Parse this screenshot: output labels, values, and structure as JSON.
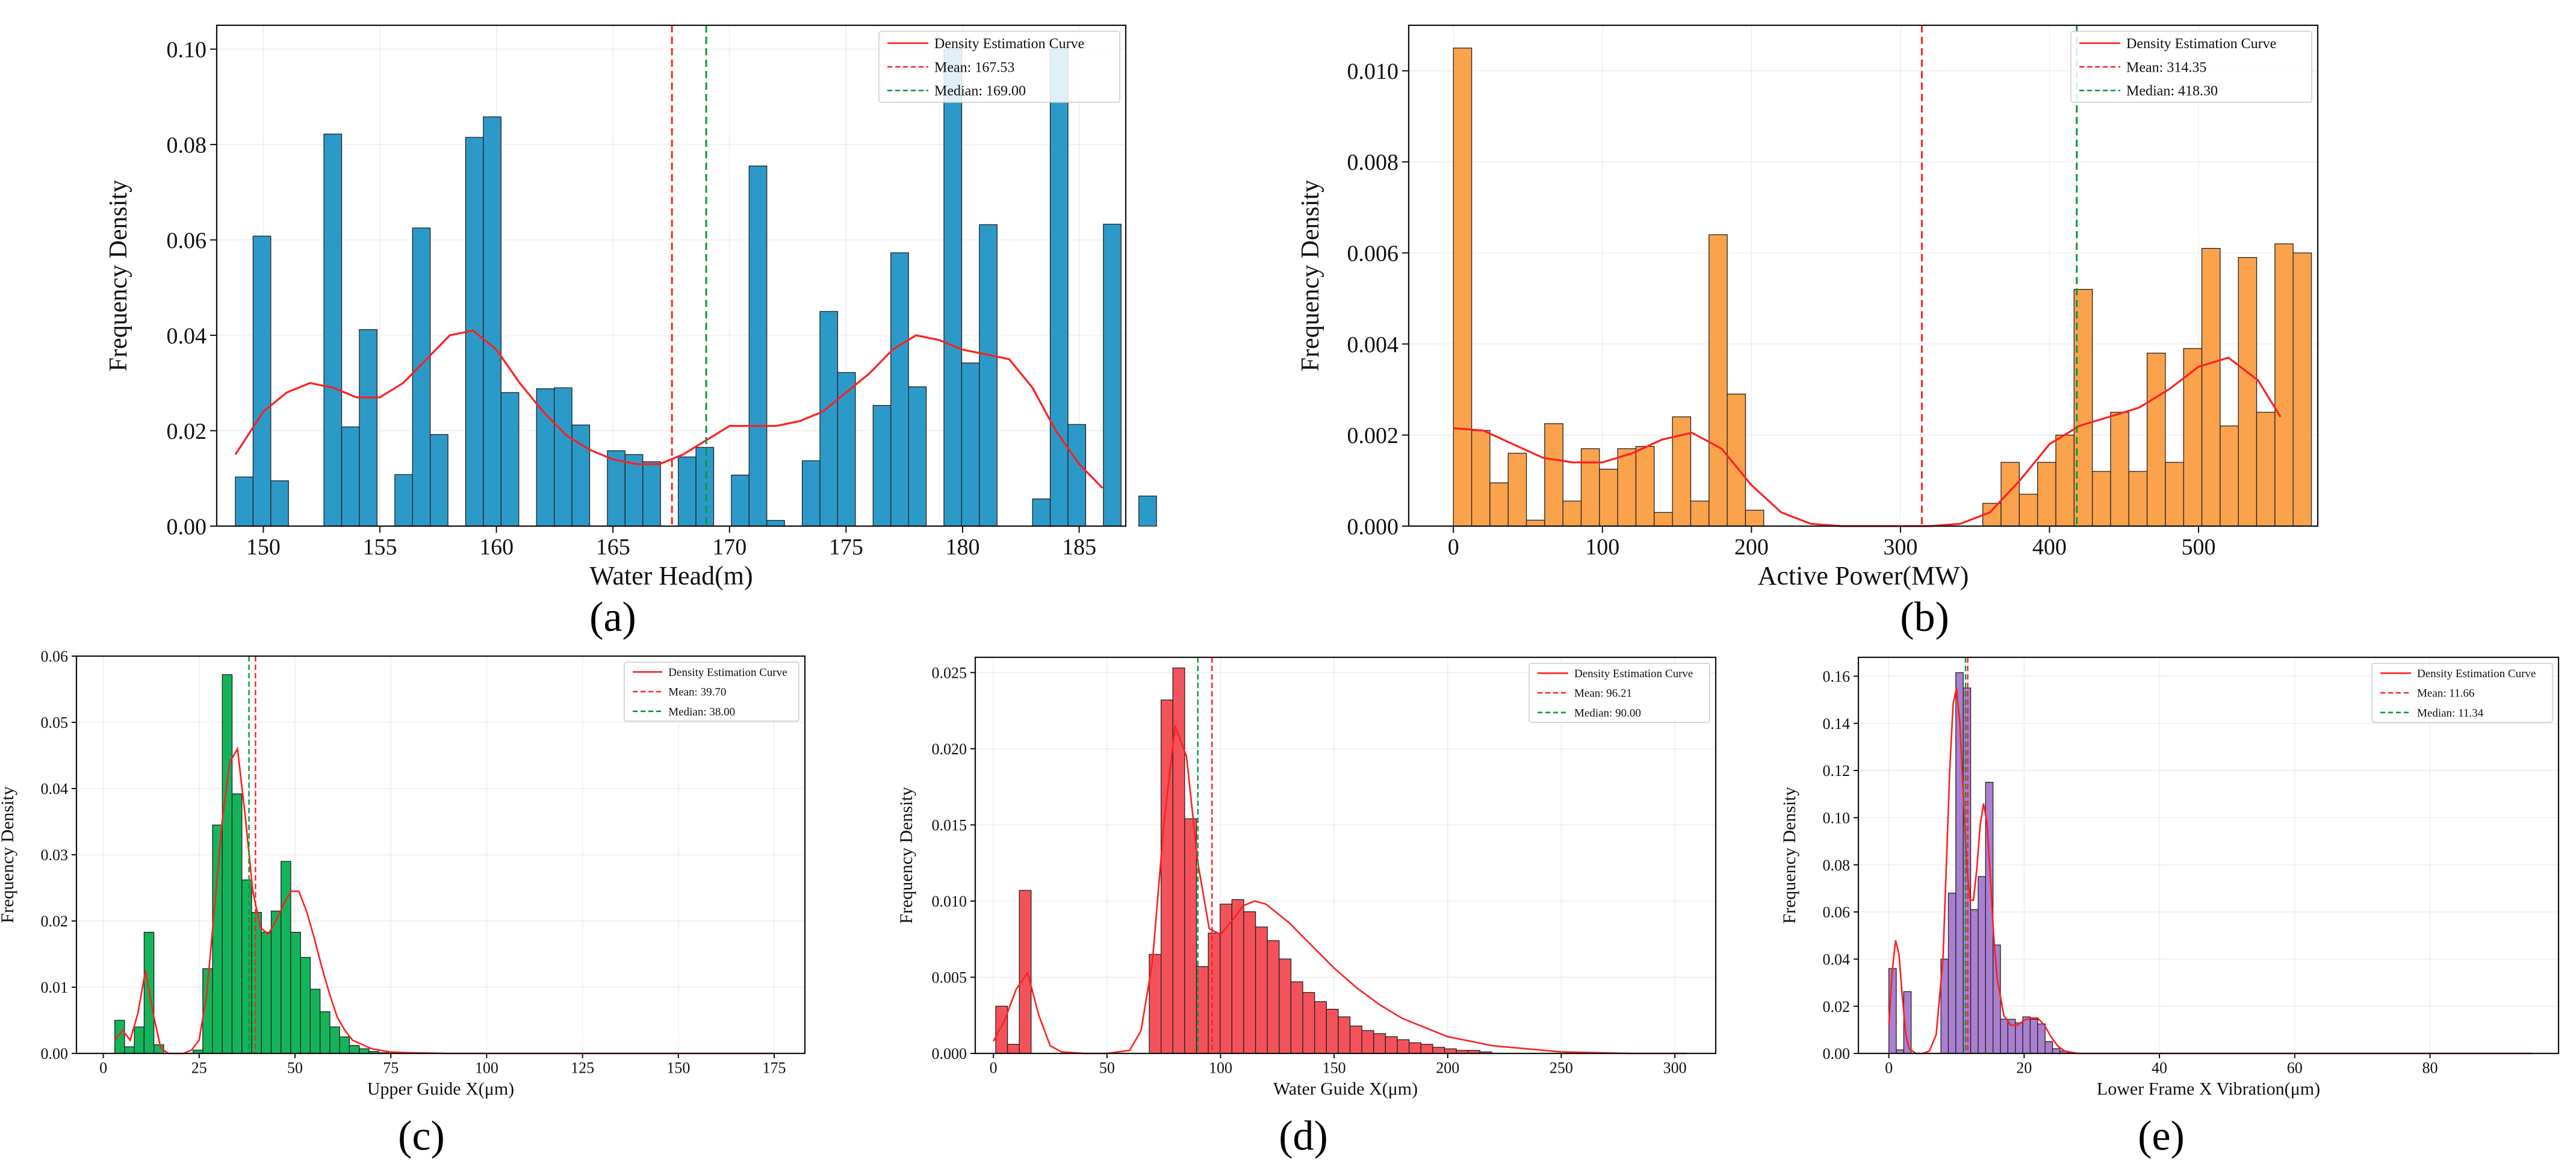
{
  "figure": {
    "panel_labels": [
      "(a)",
      "(b)",
      "(c)",
      "(d)",
      "(e)"
    ]
  },
  "chart_data": [
    {
      "id": "a",
      "type": "bar",
      "title": "",
      "xlabel": "Water Head(m)",
      "ylabel": "Frequency Density",
      "xlim": [
        148,
        187
      ],
      "ylim": [
        0,
        0.105
      ],
      "xticks": [
        150,
        155,
        160,
        165,
        170,
        175,
        180,
        185
      ],
      "yticks": [
        0,
        0.02,
        0.04,
        0.06,
        0.08,
        0.1
      ],
      "xtick_labels": [
        "150",
        "155",
        "160",
        "165",
        "170",
        "175",
        "180",
        "185"
      ],
      "ytick_labels": [
        "0.00",
        "0.02",
        "0.04",
        "0.06",
        "0.08",
        "0.10"
      ],
      "bar_color": "#2c9ac8",
      "bin_start": 148.8,
      "bin_width": 0.76,
      "values": [
        0.0103,
        0.0608,
        0.0095,
        0,
        0,
        0.0822,
        0.0208,
        0.0412,
        0,
        0.0108,
        0.0625,
        0.0192,
        0,
        0.0815,
        0.0858,
        0.028,
        0,
        0.0288,
        0.029,
        0.0212,
        0,
        0.0158,
        0.015,
        0.0135,
        0,
        0.0145,
        0.0165,
        0,
        0.0107,
        0.0755,
        0.0012,
        0,
        0.0137,
        0.045,
        0.0322,
        0,
        0.0253,
        0.0573,
        0.0292,
        0,
        0.1,
        0.0342,
        0.0632,
        0,
        0,
        0.0057,
        0.1,
        0.0213,
        0,
        0.0633,
        0,
        0.0063
      ],
      "density_curve": {
        "x": [
          148.8,
          150,
          151,
          152,
          153,
          154,
          155,
          156,
          157,
          158,
          159,
          160,
          161,
          162,
          163,
          164,
          165,
          166,
          167,
          168,
          169,
          170,
          171,
          172,
          173,
          174,
          175,
          176,
          177,
          178,
          179,
          180,
          181,
          182,
          183,
          184,
          185,
          186
        ],
        "y": [
          0.015,
          0.024,
          0.028,
          0.03,
          0.029,
          0.027,
          0.027,
          0.03,
          0.035,
          0.04,
          0.041,
          0.037,
          0.03,
          0.024,
          0.019,
          0.016,
          0.014,
          0.013,
          0.013,
          0.015,
          0.018,
          0.021,
          0.021,
          0.021,
          0.022,
          0.024,
          0.028,
          0.032,
          0.037,
          0.04,
          0.039,
          0.037,
          0.036,
          0.035,
          0.029,
          0.02,
          0.013,
          0.008
        ]
      },
      "mean": 167.53,
      "median": 169.0,
      "legend": {
        "position": "upper right",
        "curve": "Density Estimation Curve",
        "mean": "Mean: 167.53",
        "median": "Median: 169.00"
      }
    },
    {
      "id": "b",
      "type": "bar",
      "title": "",
      "xlabel": "Active Power(MW)",
      "ylabel": "Frequency Density",
      "xlim": [
        -30,
        580
      ],
      "ylim": [
        0,
        0.011
      ],
      "xticks": [
        0,
        100,
        200,
        300,
        400,
        500
      ],
      "yticks": [
        0,
        0.002,
        0.004,
        0.006,
        0.008,
        0.01
      ],
      "xtick_labels": [
        "0",
        "100",
        "200",
        "300",
        "400",
        "500"
      ],
      "ytick_labels": [
        "0.000",
        "0.002",
        "0.004",
        "0.006",
        "0.008",
        "0.010"
      ],
      "bar_color": "#fba24d",
      "bin_start": 0,
      "bin_width": 12.25,
      "values": [
        0.0105,
        0.0021,
        0.00095,
        0.0016,
        0.00013,
        0.00225,
        0.00055,
        0.0017,
        0.00125,
        0.0017,
        0.00175,
        0.0003,
        0.0024,
        0.00055,
        0.0064,
        0.0029,
        0.00035,
        0,
        0,
        0,
        0,
        0,
        0,
        0,
        0,
        0,
        0,
        0,
        0,
        0.0005,
        0.0014,
        0.0007,
        0.0014,
        0.002,
        0.0052,
        0.0012,
        0.0025,
        0.0012,
        0.0038,
        0.0014,
        0.0039,
        0.0061,
        0.0022,
        0.0059,
        0.0025,
        0.0062,
        0.006
      ],
      "density_curve": {
        "x": [
          0,
          20,
          40,
          60,
          80,
          100,
          120,
          140,
          160,
          180,
          200,
          220,
          240,
          260,
          280,
          300,
          320,
          340,
          360,
          380,
          400,
          420,
          440,
          460,
          480,
          500,
          520,
          540,
          555
        ],
        "y": [
          0.00215,
          0.0021,
          0.0018,
          0.0015,
          0.0014,
          0.0014,
          0.0016,
          0.0019,
          0.00205,
          0.0017,
          0.0009,
          0.0003,
          5e-05,
          0,
          0,
          0,
          0,
          5e-05,
          0.0003,
          0.001,
          0.0018,
          0.0022,
          0.0024,
          0.0026,
          0.003,
          0.0035,
          0.0037,
          0.0032,
          0.0024
        ]
      },
      "mean": 314.35,
      "median": 418.3,
      "legend": {
        "position": "upper right",
        "curve": "Density Estimation Curve",
        "mean": "Mean: 314.35",
        "median": "Median: 418.30"
      }
    },
    {
      "id": "c",
      "type": "bar",
      "title": "",
      "xlabel": "Upper Guide X(μm)",
      "ylabel": "Frequency Density",
      "xlim": [
        -7,
        183
      ],
      "ylim": [
        0,
        0.06
      ],
      "xticks": [
        0,
        25,
        50,
        75,
        100,
        125,
        150,
        175
      ],
      "yticks": [
        0,
        0.01,
        0.02,
        0.03,
        0.04,
        0.05,
        0.06
      ],
      "xtick_labels": [
        "0",
        "25",
        "50",
        "75",
        "100",
        "125",
        "150",
        "175"
      ],
      "ytick_labels": [
        "0.00",
        "0.01",
        "0.02",
        "0.03",
        "0.04",
        "0.05",
        "0.06"
      ],
      "bar_color": "#13b45a",
      "bin_start": 3.0,
      "bin_width": 2.55,
      "values": [
        0.005,
        0.001,
        0.004,
        0.0183,
        0.0013,
        0,
        0,
        0,
        0.0005,
        0.0128,
        0.0345,
        0.0572,
        0.0392,
        0.0262,
        0.0213,
        0.0183,
        0.0215,
        0.029,
        0.0183,
        0.0145,
        0.0097,
        0.0063,
        0.004,
        0.0025,
        0.0012,
        0.0007,
        0.0003,
        0.0001
      ],
      "density_curve": {
        "x": [
          3,
          5,
          7,
          9,
          11,
          13,
          15,
          17,
          19,
          21,
          23,
          25,
          27,
          29,
          31,
          33,
          35,
          37,
          39,
          41,
          43,
          45,
          47,
          49,
          51,
          53,
          55,
          57,
          59,
          61,
          63,
          65,
          70,
          75,
          80,
          90,
          100,
          120,
          140,
          160,
          175
        ],
        "y": [
          0.002,
          0.0035,
          0.002,
          0.006,
          0.0125,
          0.006,
          0.0008,
          0,
          0,
          0,
          0.0005,
          0.002,
          0.009,
          0.022,
          0.035,
          0.044,
          0.046,
          0.036,
          0.0245,
          0.019,
          0.018,
          0.02,
          0.0225,
          0.0245,
          0.0245,
          0.0215,
          0.0175,
          0.013,
          0.009,
          0.0055,
          0.0035,
          0.002,
          0.0007,
          0.0002,
          0.0001,
          0,
          0,
          0,
          0,
          0,
          0
        ]
      },
      "mean": 39.7,
      "median": 38.0,
      "legend": {
        "position": "upper right",
        "curve": "Density Estimation Curve",
        "mean": "Mean: 39.70",
        "median": "Median: 38.00"
      }
    },
    {
      "id": "d",
      "type": "bar",
      "title": "",
      "xlabel": "Water Guide X(μm)",
      "ylabel": "Frequency Density",
      "xlim": [
        -8,
        318
      ],
      "ylim": [
        0,
        0.026
      ],
      "xticks": [
        0,
        50,
        100,
        150,
        200,
        250,
        300
      ],
      "yticks": [
        0,
        0.005,
        0.01,
        0.015,
        0.02,
        0.025
      ],
      "xtick_labels": [
        "0",
        "50",
        "100",
        "150",
        "200",
        "250",
        "300"
      ],
      "ytick_labels": [
        "0.000",
        "0.005",
        "0.010",
        "0.015",
        "0.020",
        "0.025"
      ],
      "bar_color": "#f4525a",
      "bin_start": 1.0,
      "bin_width": 5.2,
      "values": [
        0.0031,
        0.0006,
        0.0107,
        0,
        0,
        0,
        0,
        0,
        0,
        0,
        0,
        0,
        0,
        0.0065,
        0.0232,
        0.0253,
        0.0154,
        0.0057,
        0.0079,
        0.0098,
        0.0101,
        0.0093,
        0.0083,
        0.0074,
        0.0062,
        0.0047,
        0.004,
        0.0034,
        0.0029,
        0.0024,
        0.0018,
        0.0015,
        0.0013,
        0.0011,
        0.0009,
        0.0007,
        0.0006,
        0.0004,
        0.0003,
        0.0002,
        0.0002,
        0.0001
      ],
      "density_curve": {
        "x": [
          0,
          5,
          10,
          15,
          20,
          25,
          30,
          40,
          50,
          60,
          65,
          70,
          75,
          80,
          85,
          90,
          95,
          100,
          105,
          110,
          115,
          120,
          130,
          140,
          150,
          160,
          170,
          180,
          200,
          220,
          250,
          280,
          305
        ],
        "y": [
          0.0008,
          0.0022,
          0.0042,
          0.0053,
          0.0025,
          0.0005,
          0.0001,
          0,
          0,
          0.0002,
          0.0015,
          0.006,
          0.015,
          0.0215,
          0.0195,
          0.0125,
          0.0082,
          0.0078,
          0.0087,
          0.0097,
          0.01,
          0.0098,
          0.0086,
          0.0071,
          0.0056,
          0.0043,
          0.0032,
          0.0023,
          0.0011,
          0.0005,
          0.0001,
          0,
          0
        ]
      },
      "mean": 96.21,
      "median": 90.0,
      "legend": {
        "position": "upper right",
        "curve": "Density Estimation Curve",
        "mean": "Mean: 96.21",
        "median": "Median: 90.00"
      }
    },
    {
      "id": "e",
      "type": "bar",
      "title": "",
      "xlabel": "Lower Frame X Vibration(μm)",
      "ylabel": "Frequency Density",
      "xlim": [
        -4.5,
        99
      ],
      "ylim": [
        0,
        0.168
      ],
      "xticks": [
        0,
        20,
        40,
        60,
        80
      ],
      "yticks": [
        0,
        0.02,
        0.04,
        0.06,
        0.08,
        0.1,
        0.12,
        0.14,
        0.16
      ],
      "xtick_labels": [
        "0",
        "20",
        "40",
        "60",
        "80"
      ],
      "ytick_labels": [
        "0.00",
        "0.02",
        "0.04",
        "0.06",
        "0.08",
        "0.10",
        "0.12",
        "0.14",
        "0.16"
      ],
      "bar_color": "#a97fcf",
      "bin_start": 0.0,
      "bin_width": 1.1,
      "values": [
        0.036,
        0.0015,
        0.0262,
        0,
        0,
        0,
        0,
        0.04,
        0.068,
        0.1615,
        0.155,
        0.061,
        0.075,
        0.115,
        0.046,
        0.0145,
        0.0145,
        0.013,
        0.0155,
        0.0145,
        0.0125,
        0.005,
        0.002,
        0.001,
        0.0003
      ],
      "density_curve": {
        "x": [
          0,
          0.5,
          1,
          1.5,
          2,
          2.5,
          3,
          4,
          5,
          6,
          7,
          8,
          9,
          9.5,
          10,
          10.5,
          11,
          11.5,
          12,
          12.5,
          13,
          13.5,
          14,
          14.5,
          15,
          15.5,
          16,
          17,
          18,
          19,
          20,
          21,
          22,
          23,
          24,
          25,
          26,
          28,
          30,
          40,
          60,
          80,
          95
        ],
        "y": [
          0.012,
          0.035,
          0.048,
          0.042,
          0.024,
          0.008,
          0.002,
          0,
          0,
          0.001,
          0.008,
          0.04,
          0.12,
          0.148,
          0.155,
          0.14,
          0.11,
          0.08,
          0.065,
          0.065,
          0.078,
          0.097,
          0.106,
          0.098,
          0.075,
          0.05,
          0.032,
          0.016,
          0.012,
          0.012,
          0.014,
          0.015,
          0.015,
          0.012,
          0.007,
          0.003,
          0.001,
          0,
          0,
          0,
          0,
          0,
          0
        ]
      },
      "mean": 11.66,
      "median": 11.34,
      "legend": {
        "position": "upper right",
        "curve": "Density Estimation Curve",
        "mean": "Mean: 11.66",
        "median": "Median: 11.34"
      }
    }
  ]
}
